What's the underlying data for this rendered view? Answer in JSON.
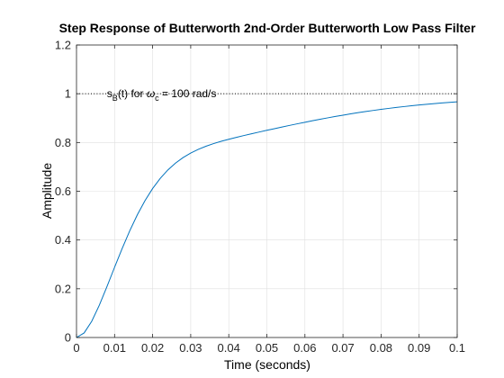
{
  "chart_data": {
    "type": "line",
    "title": "Step Response of Butterworth 2nd-Order Butterworth Low Pass Filter",
    "xlabel": "Time (seconds)",
    "ylabel": "Amplitude",
    "xlim": [
      0,
      0.1
    ],
    "ylim": [
      0,
      1.2
    ],
    "grid": true,
    "x_ticks": [
      0,
      0.01,
      0.02,
      0.03,
      0.04,
      0.05,
      0.06,
      0.07,
      0.08,
      0.09,
      0.1
    ],
    "x_tick_labels": [
      "0",
      "0.01",
      "0.02",
      "0.03",
      "0.04",
      "0.05",
      "0.06",
      "0.07",
      "0.08",
      "0.09",
      "0.1"
    ],
    "y_ticks": [
      0,
      0.2,
      0.4,
      0.6,
      0.8,
      1,
      1.2
    ],
    "y_tick_labels": [
      "0",
      "0.2",
      "0.4",
      "0.6",
      "0.8",
      "1",
      "1.2"
    ],
    "series": [
      {
        "color": "#0072bd",
        "x": [
          0,
          0.002,
          0.004,
          0.006,
          0.008,
          0.01,
          0.012,
          0.014,
          0.016,
          0.018,
          0.02,
          0.022,
          0.024,
          0.026,
          0.028,
          0.03,
          0.032,
          0.034,
          0.036,
          0.038,
          0.04,
          0.042,
          0.044,
          0.046,
          0.048,
          0.05,
          0.052,
          0.054,
          0.056,
          0.058,
          0.06,
          0.062,
          0.064,
          0.066,
          0.068,
          0.07,
          0.072,
          0.074,
          0.076,
          0.078,
          0.08,
          0.082,
          0.084,
          0.086,
          0.088,
          0.09,
          0.092,
          0.094,
          0.096,
          0.098,
          0.1
        ],
        "y": [
          0,
          0.0186,
          0.0664,
          0.1327,
          0.2088,
          0.288,
          0.3655,
          0.4382,
          0.5039,
          0.5617,
          0.6113,
          0.653,
          0.6874,
          0.7154,
          0.7382,
          0.7567,
          0.772,
          0.7846,
          0.7954,
          0.8048,
          0.8133,
          0.8212,
          0.8287,
          0.8359,
          0.843,
          0.85,
          0.8568,
          0.8636,
          0.8702,
          0.8767,
          0.8831,
          0.8893,
          0.8953,
          0.9012,
          0.9068,
          0.9122,
          0.9174,
          0.9224,
          0.9271,
          0.9316,
          0.9359,
          0.9399,
          0.9437,
          0.9473,
          0.9507,
          0.9539,
          0.9569,
          0.9597,
          0.9623,
          0.9648,
          0.9671
        ]
      }
    ],
    "reference_line": {
      "y": 1,
      "style": "dotted",
      "color": "#000000"
    },
    "annotation": {
      "x": 0.008,
      "y": 1,
      "s": "s",
      "s_sub": "B",
      "mid": "(t) for ",
      "omega": "ω",
      "omega_sub": "c",
      "tail": " = 100 rad/s"
    }
  }
}
